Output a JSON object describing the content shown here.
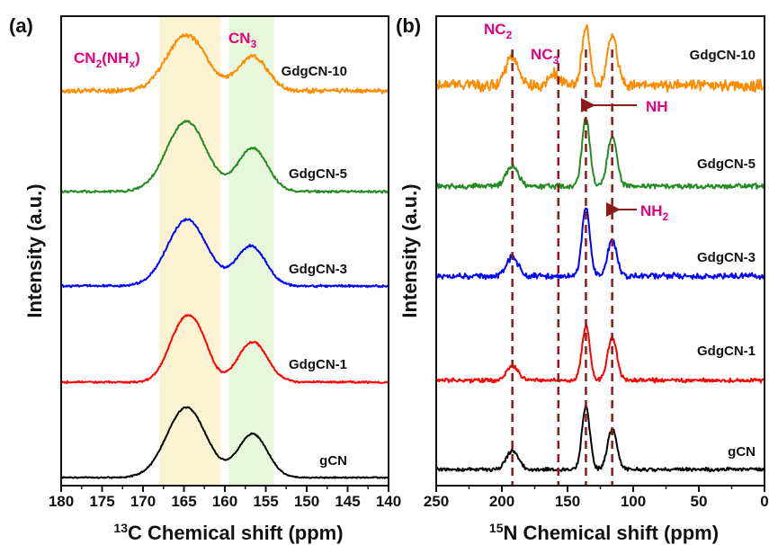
{
  "colors": {
    "gCN": "#000000",
    "GdgCN-1": "#ff0000",
    "GdgCN-3": "#0000ff",
    "GdgCN-5": "#228b22",
    "GdgCN-10": "#ff8c00",
    "annotation": "#e4007f",
    "dash": "#8b1a1a",
    "yellow_band": "#fbf3d2",
    "green_band": "#e6f7dc"
  },
  "chart_data": [
    {
      "panel_label": "(a)",
      "type": "line",
      "xlabel_sup": "13",
      "xlabel_main": "C Chemical shift (ppm)",
      "ylabel": "Intensity (a.u.)",
      "xlim": [
        180,
        140
      ],
      "xticks": [
        180,
        175,
        170,
        165,
        160,
        155,
        150,
        145,
        140
      ],
      "bands": [
        {
          "from": 168,
          "to": 160.5,
          "color": "yellow_band"
        },
        {
          "from": 159.5,
          "to": 154,
          "color": "green_band"
        }
      ],
      "annotations": [
        {
          "main": "CN",
          "sub1": "2",
          "mid": "(NH",
          "sub2": "x",
          "end": ")",
          "x": 170
        },
        {
          "main": "CN",
          "sub1": "3",
          "mid": "",
          "sub2": "",
          "end": "",
          "x": 156
        }
      ],
      "series": [
        {
          "name": "gCN",
          "peaks": [
            {
              "c": 164.7,
              "h": 1.0,
              "w": 2.4
            },
            {
              "c": 156.6,
              "h": 0.62,
              "w": 1.8
            }
          ]
        },
        {
          "name": "GdgCN-1",
          "peaks": [
            {
              "c": 165.0,
              "h": 0.95,
              "w": 1.8
            },
            {
              "c": 162.8,
              "h": 0.35,
              "w": 1.3
            },
            {
              "c": 156.6,
              "h": 0.64,
              "w": 1.8
            }
          ]
        },
        {
          "name": "GdgCN-3",
          "peaks": [
            {
              "c": 164.6,
              "h": 1.0,
              "w": 2.4
            },
            {
              "c": 156.8,
              "h": 0.6,
              "w": 1.8
            }
          ]
        },
        {
          "name": "GdgCN-5",
          "peaks": [
            {
              "c": 164.7,
              "h": 1.0,
              "w": 2.4
            },
            {
              "c": 156.6,
              "h": 0.62,
              "w": 1.8
            }
          ]
        },
        {
          "name": "GdgCN-10",
          "peaks": [
            {
              "c": 164.7,
              "h": 1.0,
              "w": 2.4
            },
            {
              "c": 156.6,
              "h": 0.62,
              "w": 1.8
            }
          ]
        }
      ]
    },
    {
      "panel_label": "(b)",
      "type": "line",
      "xlabel_sup": "15",
      "xlabel_main": "N Chemical shift (ppm)",
      "ylabel": "Intensity (a.u.)",
      "xlim": [
        250,
        0
      ],
      "xticks": [
        250,
        200,
        150,
        100,
        50,
        0
      ],
      "dashed_lines": [
        192,
        157,
        136,
        116
      ],
      "annotations": [
        {
          "main": "NC",
          "sub": "2",
          "x": 192
        },
        {
          "main": "NC",
          "sub": "3",
          "x": 157
        },
        {
          "main": "NH",
          "sub": "",
          "x": 136
        },
        {
          "main": "NH",
          "sub": "2",
          "x": 116
        }
      ],
      "series": [
        {
          "name": "gCN",
          "peaks": [
            {
              "c": 192,
              "h": 0.3,
              "w": 4.5
            },
            {
              "c": 136,
              "h": 1.0,
              "w": 3.0
            },
            {
              "c": 116,
              "h": 0.65,
              "w": 3.6
            }
          ]
        },
        {
          "name": "GdgCN-1",
          "peaks": [
            {
              "c": 192,
              "h": 0.27,
              "w": 4.5
            },
            {
              "c": 136,
              "h": 1.0,
              "w": 3.0
            },
            {
              "c": 116,
              "h": 0.78,
              "w": 3.6
            }
          ]
        },
        {
          "name": "GdgCN-3",
          "peaks": [
            {
              "c": 192,
              "h": 0.28,
              "w": 4.5
            },
            {
              "c": 136,
              "h": 1.0,
              "w": 3.0
            },
            {
              "c": 116,
              "h": 0.52,
              "w": 3.6
            }
          ]
        },
        {
          "name": "GdgCN-5",
          "peaks": [
            {
              "c": 192,
              "h": 0.3,
              "w": 4.5
            },
            {
              "c": 136,
              "h": 1.0,
              "w": 3.0
            },
            {
              "c": 116,
              "h": 0.75,
              "w": 3.6
            }
          ]
        },
        {
          "name": "GdgCN-10",
          "peaks": [
            {
              "c": 192,
              "h": 0.45,
              "w": 5.0
            },
            {
              "c": 160,
              "h": 0.2,
              "w": 4.0
            },
            {
              "c": 136,
              "h": 1.0,
              "w": 3.0
            },
            {
              "c": 116,
              "h": 0.85,
              "w": 3.6
            }
          ]
        }
      ]
    }
  ]
}
